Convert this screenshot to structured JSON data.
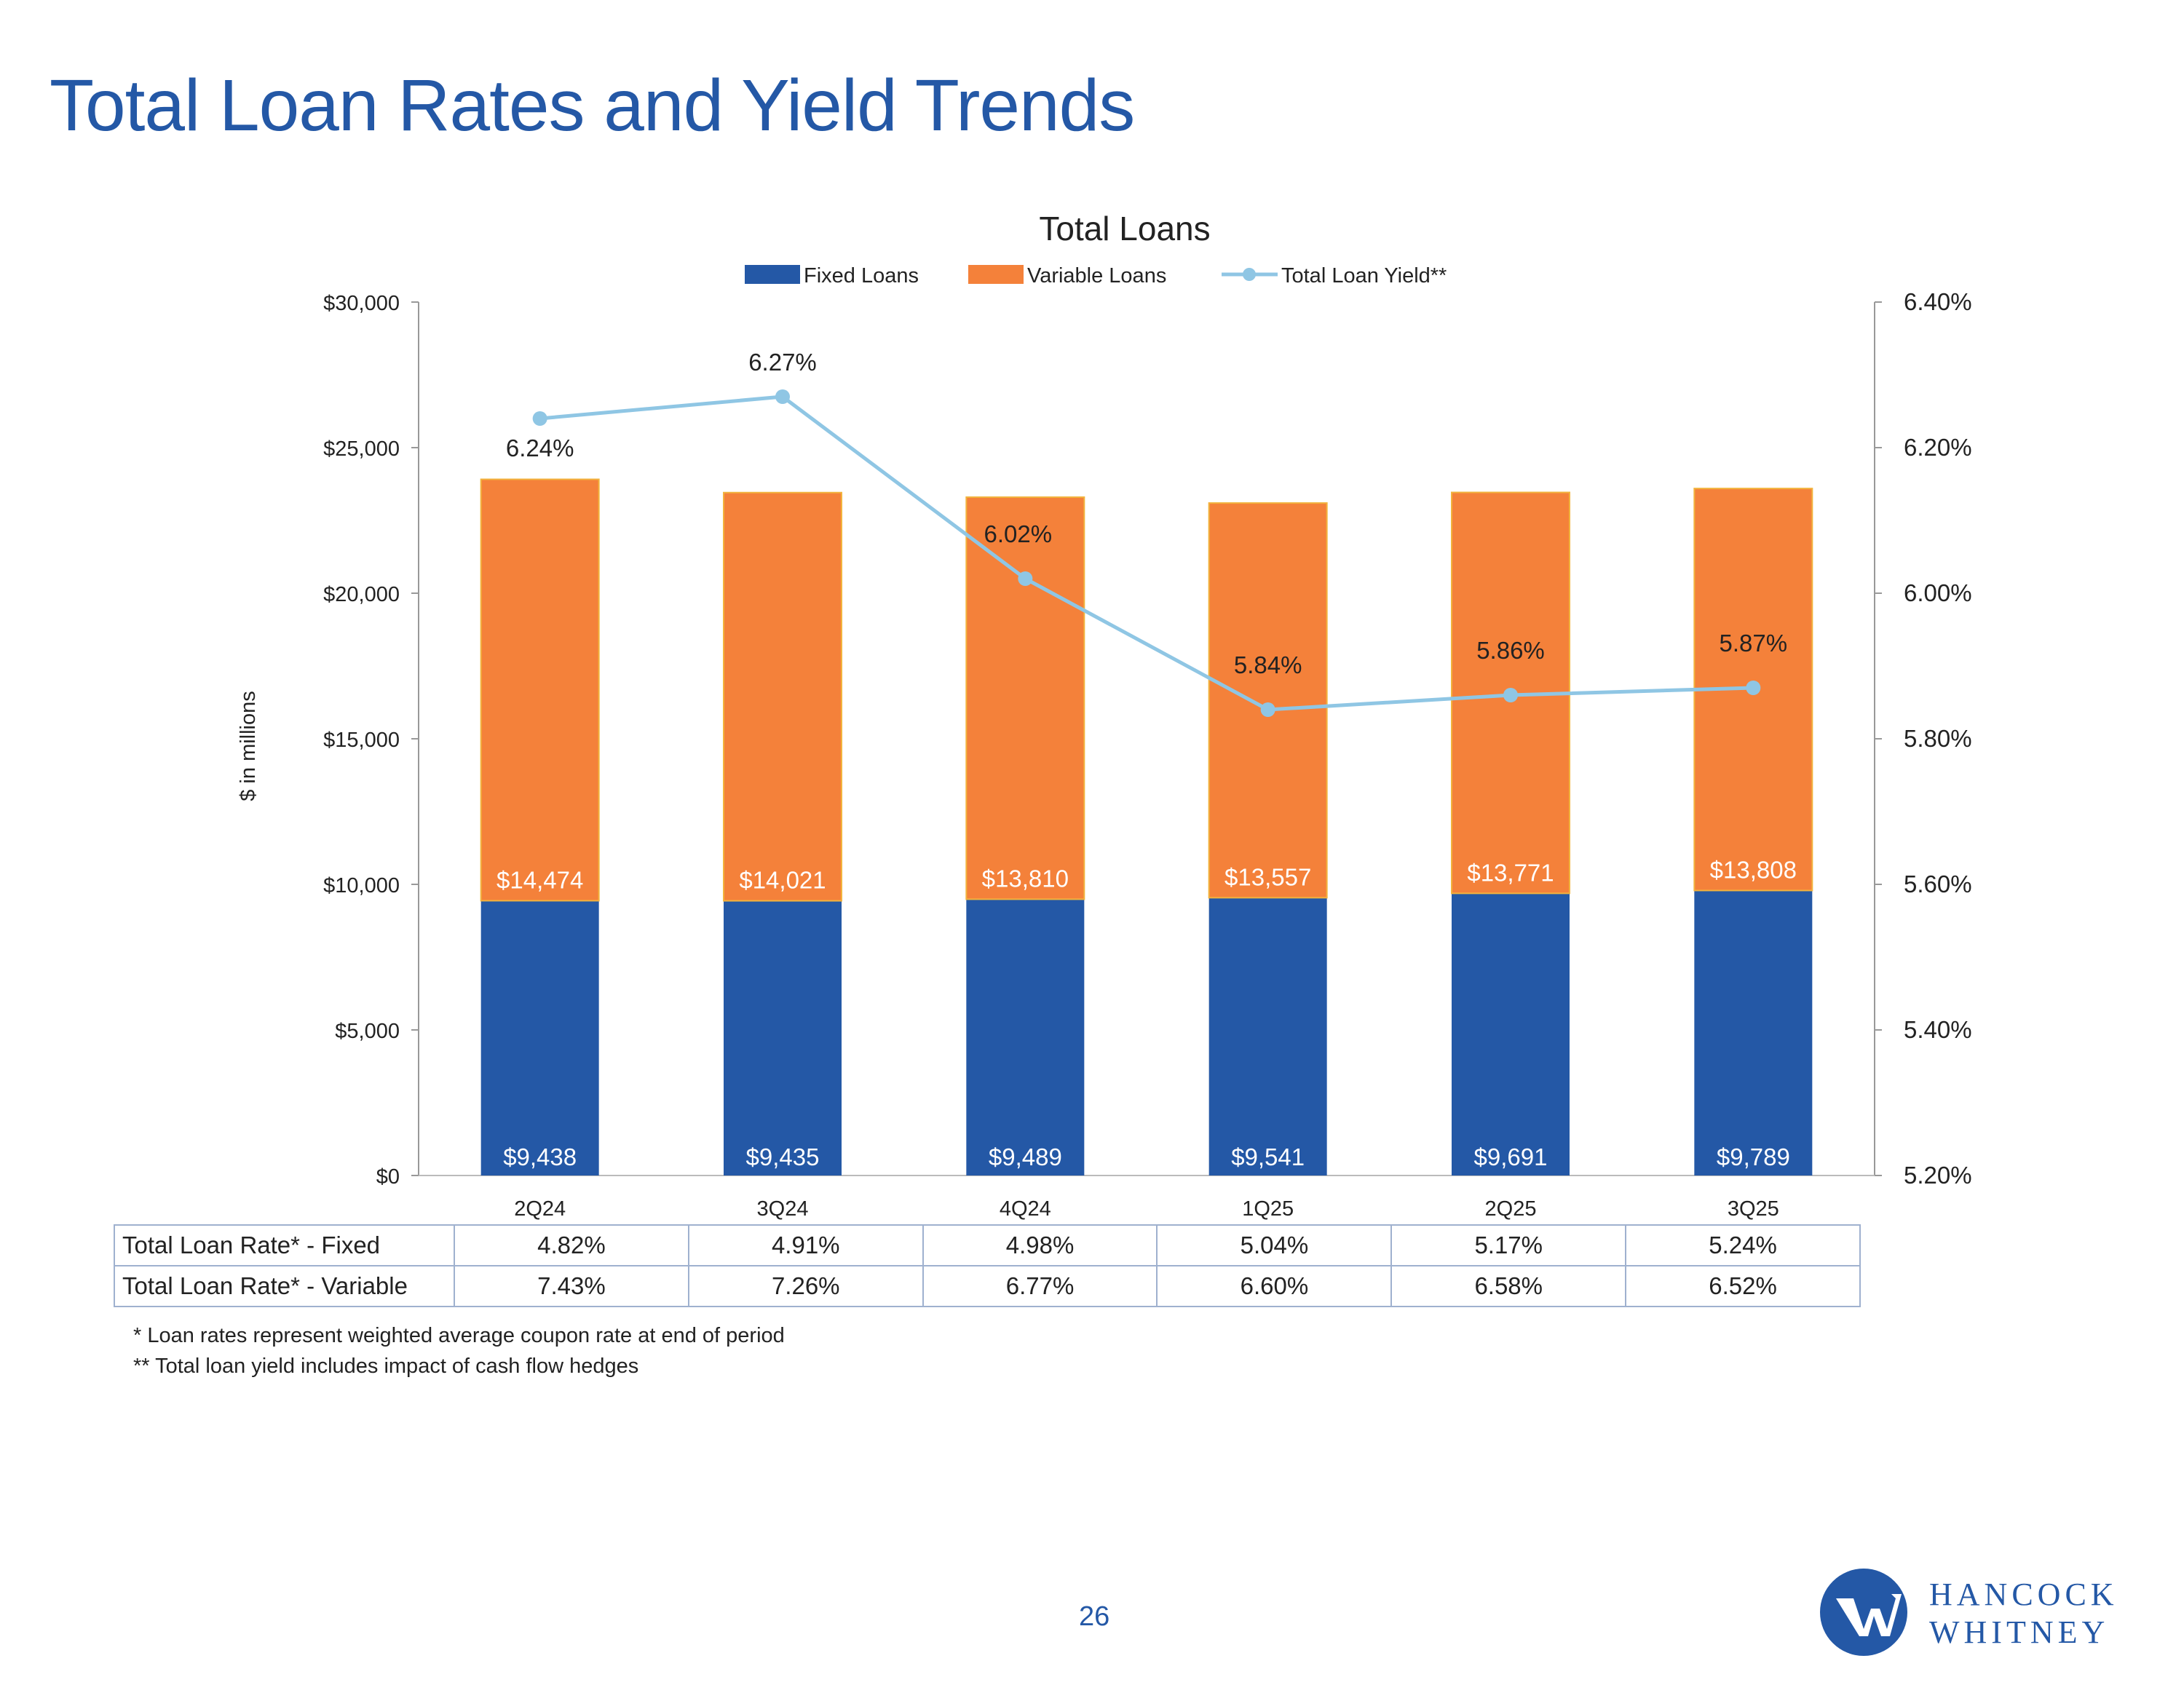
{
  "page": {
    "title": "Total Loan Rates and Yield Trends",
    "page_number": "26",
    "footnotes": [
      "* Loan rates represent weighted average coupon rate at end of period",
      "** Total loan yield includes impact of cash flow hedges"
    ],
    "logo": {
      "line1": "HANCOCK",
      "line2": "WHITNEY"
    }
  },
  "chart_data": {
    "type": "bar",
    "stacked": true,
    "title": "Total Loans",
    "ylabel": "$ in millions",
    "y2label": "",
    "categories": [
      "2Q24",
      "3Q24",
      "4Q24",
      "1Q25",
      "2Q25",
      "3Q25"
    ],
    "ylim": [
      0,
      30000
    ],
    "yticks": [
      0,
      5000,
      10000,
      15000,
      20000,
      25000,
      30000
    ],
    "ytick_labels": [
      "$0",
      "$5,000",
      "$10,000",
      "$15,000",
      "$20,000",
      "$25,000",
      "$30,000"
    ],
    "y2lim": [
      5.2,
      6.4
    ],
    "y2ticks": [
      5.2,
      5.4,
      5.6,
      5.8,
      6.0,
      6.2,
      6.4
    ],
    "y2tick_labels": [
      "5.20%",
      "5.40%",
      "5.60%",
      "5.80%",
      "6.00%",
      "6.20%",
      "6.40%"
    ],
    "legend_position": "top",
    "grid": false,
    "series": [
      {
        "name": "Fixed Loans",
        "kind": "bar",
        "axis": "left",
        "color": "#2458a6",
        "values": [
          9438,
          9435,
          9489,
          9541,
          9691,
          9789
        ],
        "labels": [
          "$9,438",
          "$9,435",
          "$9,489",
          "$9,541",
          "$9,691",
          "$9,789"
        ]
      },
      {
        "name": "Variable Loans",
        "kind": "bar",
        "axis": "left",
        "color": "#f4813a",
        "values": [
          14474,
          14021,
          13810,
          13557,
          13771,
          13808
        ],
        "labels": [
          "$14,474",
          "$14,021",
          "$13,810",
          "$13,557",
          "$13,771",
          "$13,808"
        ]
      },
      {
        "name": "Total Loan Yield**",
        "kind": "line",
        "axis": "right",
        "color": "#8fc6e4",
        "values": [
          6.24,
          6.27,
          6.02,
          5.84,
          5.86,
          5.87
        ],
        "labels": [
          "6.24%",
          "6.27%",
          "6.02%",
          "5.84%",
          "5.86%",
          "5.87%"
        ]
      }
    ],
    "table": {
      "rows": [
        {
          "label": "Total Loan Rate* - Fixed",
          "values": [
            "4.82%",
            "4.91%",
            "4.98%",
            "5.04%",
            "5.17%",
            "5.24%"
          ]
        },
        {
          "label": "Total Loan Rate* - Variable",
          "values": [
            "7.43%",
            "7.26%",
            "6.77%",
            "6.60%",
            "6.58%",
            "6.52%"
          ]
        }
      ]
    }
  }
}
